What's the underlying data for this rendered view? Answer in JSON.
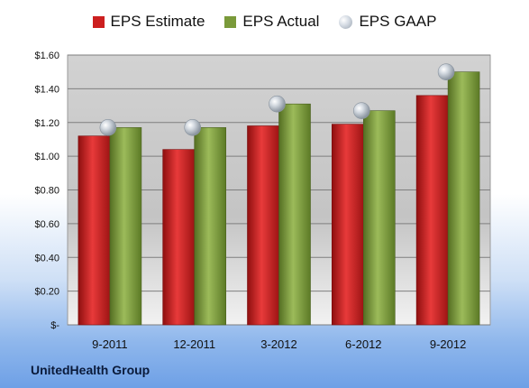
{
  "chart_data": {
    "type": "bar",
    "categories": [
      "9-2011",
      "12-2011",
      "3-2012",
      "6-2012",
      "9-2012"
    ],
    "series": [
      {
        "name": "EPS Estimate",
        "values": [
          1.12,
          1.04,
          1.18,
          1.19,
          1.36
        ],
        "color": "#cc1f1f",
        "kind": "bar"
      },
      {
        "name": "EPS Actual",
        "values": [
          1.17,
          1.17,
          1.31,
          1.27,
          1.5
        ],
        "color": "#7a9a3a",
        "kind": "bar"
      },
      {
        "name": "EPS GAAP",
        "values": [
          1.17,
          1.17,
          1.31,
          1.27,
          1.5
        ],
        "color": "#b8c0ca",
        "kind": "marker"
      }
    ],
    "yticks": [
      "$-",
      "$0.20",
      "$0.40",
      "$0.60",
      "$0.80",
      "$1.00",
      "$1.20",
      "$1.40",
      "$1.60"
    ],
    "ylim": [
      0,
      1.6
    ],
    "grid": true,
    "legend_position": "top"
  },
  "footer": {
    "company": "UnitedHealth Group"
  },
  "colors": {
    "plot_background": "#c9c9c9",
    "gridline": "#7f7f7f"
  }
}
